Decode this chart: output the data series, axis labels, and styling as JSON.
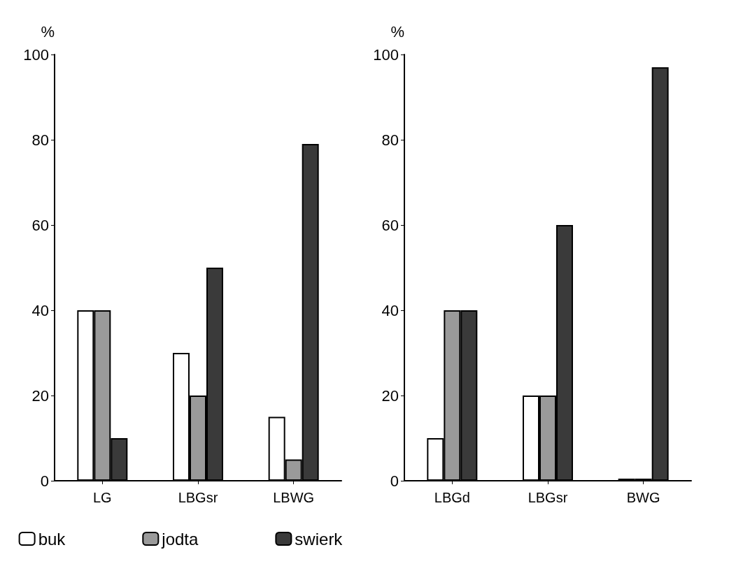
{
  "chart_data": [
    {
      "type": "bar",
      "ylabel": "%",
      "categories": [
        "LG",
        "LBGsr",
        "LBWG"
      ],
      "series": [
        {
          "name": "buk",
          "color": "#ffffff",
          "values": [
            40,
            30,
            15
          ]
        },
        {
          "name": "jodta",
          "color": "#9a9a9a",
          "values": [
            40,
            20,
            5
          ]
        },
        {
          "name": "swierk",
          "color": "#3a3a3a",
          "values": [
            10,
            50,
            79
          ]
        }
      ],
      "ylim": [
        0,
        100
      ],
      "yticks": [
        0,
        20,
        40,
        60,
        80,
        100
      ],
      "grid": false,
      "legend": "bottom"
    },
    {
      "type": "bar",
      "ylabel": "%",
      "categories": [
        "LBGd",
        "LBGsr",
        "BWG"
      ],
      "series": [
        {
          "color": "#ffffff",
          "values": [
            10,
            20,
            0.5
          ]
        },
        {
          "color": "#9a9a9a",
          "values": [
            40,
            20,
            0.5
          ]
        },
        {
          "color": "#3a3a3a",
          "values": [
            40,
            60,
            97
          ]
        }
      ],
      "ylim": [
        0,
        100
      ],
      "yticks": [
        0,
        20,
        40,
        60,
        80,
        100
      ],
      "grid": false,
      "legend": false
    }
  ]
}
